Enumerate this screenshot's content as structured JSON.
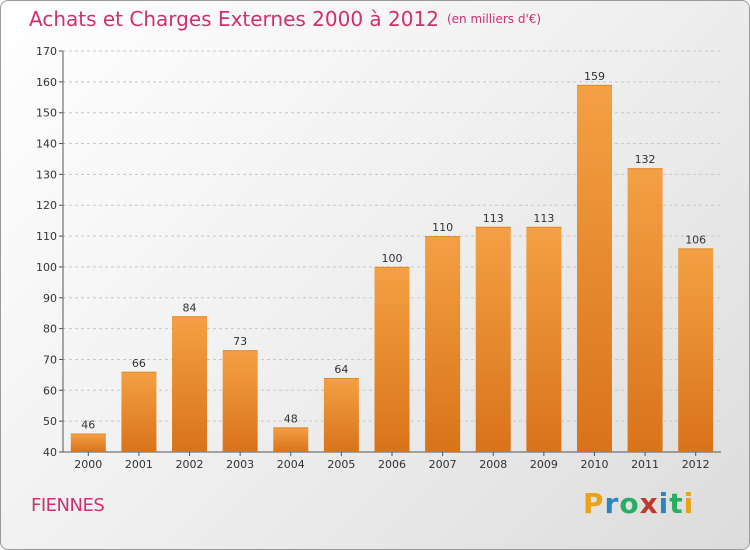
{
  "page": {
    "city": "FIENNES"
  },
  "logo": {
    "letters": [
      "P",
      "r",
      "o",
      "x",
      "i",
      "t",
      "i"
    ],
    "colors": [
      "#e8a317",
      "#2e86c1",
      "#27ae60",
      "#c0392b",
      "#2e86c1",
      "#27ae60",
      "#e8a317"
    ]
  },
  "chart_data": {
    "type": "bar",
    "title": "Achats et Charges Externes 2000 à 2012",
    "subtitle": "(en milliers d'€)",
    "categories": [
      "2000",
      "2001",
      "2002",
      "2003",
      "2004",
      "2005",
      "2006",
      "2007",
      "2008",
      "2009",
      "2010",
      "2011",
      "2012"
    ],
    "values": [
      46,
      66,
      84,
      73,
      48,
      64,
      100,
      110,
      113,
      113,
      159,
      132,
      106
    ],
    "ylim": [
      40,
      170
    ],
    "yticks": [
      40,
      50,
      60,
      70,
      80,
      90,
      100,
      110,
      120,
      130,
      140,
      150,
      160,
      170
    ],
    "grid": "dashed-horizontal",
    "bar_color": "#f4a044",
    "bar_color_dark": "#d9731a"
  }
}
